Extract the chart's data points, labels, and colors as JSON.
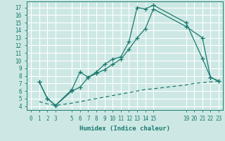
{
  "xlabel": "Humidex (Indice chaleur)",
  "bg_color": "#cde8e4",
  "grid_color": "#ffffff",
  "line_color": "#1a7a6e",
  "xlim": [
    -0.5,
    23.5
  ],
  "ylim": [
    3.5,
    17.8
  ],
  "xticks": [
    0,
    1,
    2,
    3,
    5,
    6,
    7,
    8,
    9,
    10,
    11,
    12,
    13,
    14,
    15,
    19,
    20,
    21,
    22,
    23
  ],
  "yticks": [
    4,
    5,
    6,
    7,
    8,
    9,
    10,
    11,
    12,
    13,
    14,
    15,
    16,
    17
  ],
  "line1_x": [
    1,
    2,
    3,
    5,
    6,
    7,
    8,
    9,
    10,
    11,
    12,
    13,
    14,
    15,
    19,
    21,
    22,
    23
  ],
  "line1_y": [
    7.2,
    5.0,
    4.1,
    6.2,
    8.5,
    7.8,
    8.5,
    9.5,
    10.2,
    10.5,
    12.5,
    17.0,
    16.8,
    17.3,
    15.0,
    10.3,
    7.8,
    7.3
  ],
  "line2_x": [
    1,
    2,
    3,
    5,
    6,
    7,
    8,
    9,
    10,
    11,
    12,
    13,
    14,
    15,
    19,
    21,
    22,
    23
  ],
  "line2_y": [
    7.2,
    5.0,
    4.1,
    6.0,
    6.5,
    7.8,
    8.3,
    8.8,
    9.5,
    10.2,
    11.5,
    13.0,
    14.2,
    16.8,
    14.5,
    13.0,
    7.8,
    7.3
  ],
  "line3_x": [
    1,
    2,
    3,
    5,
    6,
    7,
    8,
    9,
    10,
    11,
    12,
    13,
    14,
    15,
    19,
    20,
    21,
    22,
    23
  ],
  "line3_y": [
    4.6,
    4.3,
    4.1,
    4.4,
    4.6,
    4.8,
    5.0,
    5.2,
    5.4,
    5.6,
    5.8,
    6.0,
    6.2,
    6.3,
    6.8,
    7.0,
    7.1,
    7.2,
    7.3
  ]
}
